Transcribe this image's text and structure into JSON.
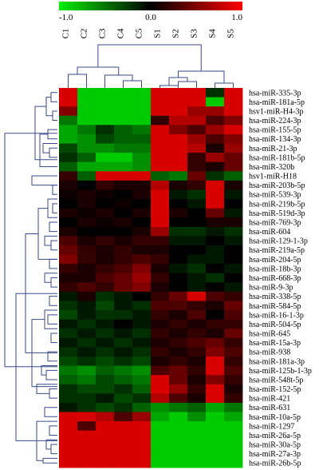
{
  "chart_data": {
    "type": "heatmap",
    "title": "",
    "xlabel": "",
    "ylabel": "",
    "colorbar": {
      "min_label": "-1.0",
      "mid_label": "0.0",
      "max_label": "1.0",
      "range": [
        -1.0,
        1.0
      ]
    },
    "colors": {
      "low": "#00ee00",
      "mid": "#000000",
      "high": "#ff0000"
    },
    "legend_position": "top",
    "columns": [
      "C1",
      "C2",
      "C3",
      "C4",
      "C5",
      "S1",
      "S2",
      "S3",
      "S4",
      "S5"
    ],
    "rows": [
      {
        "label": "hsa-miR-335-3p",
        "values": [
          0.85,
          -0.85,
          -0.85,
          -0.85,
          -0.85,
          0.85,
          0.85,
          0.85,
          -0.2,
          0.85
        ]
      },
      {
        "label": "hsa-miR-181a-5p",
        "values": [
          0.85,
          -0.85,
          -0.85,
          -0.85,
          -0.85,
          0.85,
          0.85,
          0.85,
          -0.85,
          0.85
        ]
      },
      {
        "label": "hsv1-miR-H4-3p",
        "values": [
          0.5,
          -0.85,
          -0.85,
          -0.85,
          -0.85,
          0.85,
          0.85,
          0.6,
          0.6,
          0.85
        ]
      },
      {
        "label": "hsa-miR-224-3p",
        "values": [
          -0.5,
          -0.85,
          -0.85,
          -0.85,
          -0.85,
          0.2,
          0.7,
          0.7,
          0.3,
          0.5
        ]
      },
      {
        "label": "hsa-miR-155-5p",
        "values": [
          -0.7,
          -0.5,
          -0.2,
          -0.4,
          -0.5,
          0.85,
          0.5,
          0.3,
          0.6,
          0.85
        ]
      },
      {
        "label": "hsa-miR-134-3p",
        "values": [
          -0.7,
          -0.6,
          -0.3,
          -0.4,
          -0.4,
          0.85,
          0.85,
          0.6,
          0.3,
          0.5
        ]
      },
      {
        "label": "hsa-miR-21-3p",
        "values": [
          -0.3,
          -0.6,
          -0.6,
          -0.5,
          -0.5,
          0.85,
          0.85,
          0.7,
          0.1,
          0.6
        ]
      },
      {
        "label": "hsa-miR-181b-5p",
        "values": [
          -0.2,
          -0.4,
          -0.85,
          -0.85,
          -0.6,
          0.85,
          0.85,
          0.2,
          0.6,
          0.4
        ]
      },
      {
        "label": "hsa-miR-320b",
        "values": [
          -0.4,
          -0.7,
          -0.7,
          -0.7,
          -0.6,
          0.85,
          0.85,
          0.2,
          0.1,
          0.4
        ]
      },
      {
        "label": "hsv1-miR-H18",
        "values": [
          0.2,
          -0.4,
          0.85,
          0.85,
          0.85,
          -0.4,
          -0.5,
          0.4,
          -0.2,
          -0.4
        ]
      },
      {
        "label": "hsa-miR-203b-5p",
        "values": [
          0.1,
          0.0,
          0.2,
          0.1,
          0.1,
          0.7,
          0.1,
          0.2,
          0.85,
          0.1
        ]
      },
      {
        "label": "hsa-miR-539-3p",
        "values": [
          0.05,
          0.1,
          0.05,
          0.0,
          0.1,
          0.85,
          -0.1,
          -0.2,
          0.85,
          -0.1
        ]
      },
      {
        "label": "hsa-miR-219b-5p",
        "values": [
          0.0,
          0.1,
          0.0,
          0.05,
          0.0,
          0.85,
          0.0,
          -0.1,
          0.85,
          0.0
        ]
      },
      {
        "label": "hsa-miR-519d-3p",
        "values": [
          0.1,
          0.05,
          0.1,
          0.0,
          0.1,
          0.85,
          0.1,
          0.0,
          0.4,
          -0.1
        ]
      },
      {
        "label": "hsa-miR-769-3p",
        "values": [
          0.0,
          0.1,
          0.05,
          0.1,
          0.0,
          0.85,
          0.0,
          0.0,
          0.1,
          0.1
        ]
      },
      {
        "label": "hsa-miR-604",
        "values": [
          0.1,
          0.0,
          0.0,
          0.0,
          0.1,
          0.6,
          -0.2,
          -0.2,
          -0.1,
          -0.2
        ]
      },
      {
        "label": "hsa-miR-129-1-3p",
        "values": [
          0.3,
          0.1,
          0.2,
          0.1,
          0.2,
          0.2,
          -0.1,
          -0.1,
          0.0,
          -0.1
        ]
      },
      {
        "label": "hsa-miR-219a-5p",
        "values": [
          0.4,
          0.2,
          0.1,
          0.2,
          0.1,
          0.1,
          0.0,
          0.0,
          -0.1,
          0.0
        ]
      },
      {
        "label": "hsa-miR-204-5p",
        "values": [
          0.5,
          0.2,
          0.1,
          0.2,
          0.3,
          0.2,
          0.0,
          -0.1,
          -0.1,
          0.0
        ]
      },
      {
        "label": "hsa-miR-18b-3p",
        "values": [
          0.2,
          0.1,
          0.2,
          0.3,
          0.5,
          0.1,
          -0.1,
          -0.2,
          0.0,
          -0.1
        ]
      },
      {
        "label": "hsa-miR-668-3p",
        "values": [
          0.1,
          0.1,
          0.3,
          0.4,
          0.6,
          0.2,
          0.0,
          -0.1,
          -0.2,
          0.0
        ]
      },
      {
        "label": "hsa-miR-9-3p",
        "values": [
          0.2,
          0.3,
          0.2,
          0.4,
          0.5,
          0.1,
          0.0,
          -0.1,
          0.0,
          -0.1
        ]
      },
      {
        "label": "hsa-miR-338-5p",
        "values": [
          -0.1,
          0.1,
          -0.2,
          -0.1,
          0.0,
          0.2,
          0.4,
          0.85,
          0.3,
          0.2
        ]
      },
      {
        "label": "hsa-miR-584-5p",
        "values": [
          -0.2,
          -0.1,
          -0.3,
          -0.1,
          -0.2,
          0.3,
          0.3,
          0.2,
          0.1,
          0.4
        ]
      },
      {
        "label": "hsa-miR-16-1-3p",
        "values": [
          -0.3,
          -0.1,
          -0.2,
          -0.2,
          -0.1,
          0.2,
          0.1,
          0.3,
          0.0,
          0.3
        ]
      },
      {
        "label": "hsa-miR-504-5p",
        "values": [
          -0.1,
          -0.2,
          -0.1,
          0.0,
          -0.1,
          0.1,
          0.2,
          0.1,
          0.2,
          0.2
        ]
      },
      {
        "label": "hsa-miR-645",
        "values": [
          -0.2,
          -0.1,
          -0.2,
          -0.1,
          -0.2,
          0.2,
          0.1,
          0.2,
          0.1,
          0.4
        ]
      },
      {
        "label": "hsa-miR-15a-3p",
        "values": [
          -0.1,
          -0.2,
          -0.1,
          -0.2,
          -0.1,
          0.1,
          0.2,
          0.3,
          0.4,
          0.2
        ]
      },
      {
        "label": "hsa-miR-938",
        "values": [
          -0.2,
          -0.1,
          -0.2,
          -0.1,
          -0.2,
          0.2,
          0.1,
          0.2,
          0.5,
          0.3
        ]
      },
      {
        "label": "hsa-miR-181a-3p",
        "values": [
          -0.3,
          -0.2,
          -0.3,
          -0.2,
          -0.3,
          0.1,
          0.2,
          0.1,
          0.85,
          0.2
        ]
      },
      {
        "label": "hsa-miR-125b-1-3p",
        "values": [
          -0.5,
          -0.6,
          -0.4,
          -0.5,
          -0.6,
          0.3,
          0.4,
          0.2,
          0.85,
          0.3
        ]
      },
      {
        "label": "hsa-miR-548t-5p",
        "values": [
          -0.4,
          -0.5,
          -0.3,
          -0.4,
          -0.5,
          0.85,
          0.4,
          0.1,
          0.5,
          0.2
        ]
      },
      {
        "label": "hsa-miR-152-5p",
        "values": [
          -0.2,
          -0.3,
          -0.3,
          -0.2,
          -0.4,
          0.85,
          0.6,
          0.2,
          0.85,
          0.1
        ]
      },
      {
        "label": "hsa-miR-421",
        "values": [
          -0.2,
          -0.2,
          -0.1,
          -0.3,
          -0.2,
          0.7,
          0.3,
          0.1,
          0.85,
          0.2
        ]
      },
      {
        "label": "hsa-miR-631",
        "values": [
          -0.1,
          -0.2,
          -0.3,
          -0.2,
          -0.4,
          -0.6,
          -0.5,
          -0.4,
          -0.7,
          -0.5
        ]
      },
      {
        "label": "hsa-miR-10a-5p",
        "values": [
          0.85,
          0.85,
          0.7,
          0.3,
          0.6,
          -0.7,
          -0.85,
          -0.6,
          -0.85,
          -0.7
        ]
      },
      {
        "label": "hsa-miR-1297",
        "values": [
          0.85,
          0.3,
          0.85,
          0.85,
          0.85,
          -0.85,
          -0.85,
          -0.85,
          -0.85,
          -0.85
        ]
      },
      {
        "label": "hsa-miR-26a-5p",
        "values": [
          0.85,
          0.85,
          0.85,
          0.85,
          0.85,
          -0.85,
          -0.85,
          -0.85,
          -0.85,
          -0.85
        ]
      },
      {
        "label": "hsa-miR-30a-5p",
        "values": [
          0.85,
          0.85,
          0.85,
          0.85,
          0.85,
          -0.85,
          -0.85,
          -0.85,
          -0.85,
          -0.85
        ]
      },
      {
        "label": "hsa-miR-27a-3p",
        "values": [
          0.85,
          0.85,
          0.85,
          0.85,
          0.85,
          -0.85,
          -0.85,
          -0.85,
          -0.85,
          -0.85
        ]
      },
      {
        "label": "hsa-miR-26b-5p",
        "values": [
          0.85,
          0.85,
          0.85,
          0.85,
          0.85,
          -0.85,
          -0.85,
          -0.85,
          -0.85,
          -0.85
        ]
      }
    ]
  }
}
